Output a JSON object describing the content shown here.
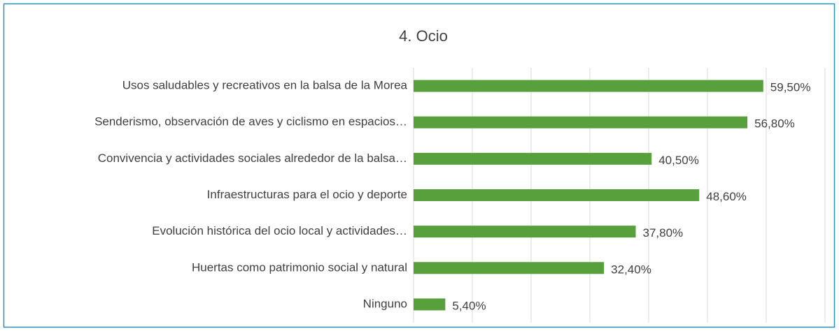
{
  "chart_data": {
    "type": "barh",
    "title": "4. Ocio",
    "categories": [
      "Usos saludables y recreativos en la balsa de la Morea",
      "Senderismo, observación de aves y ciclismo en espacios…",
      "Convivencia y actividades sociales alrededor de la balsa…",
      "Infraestructuras para el ocio y deporte",
      "Evolución histórica del ocio local y actividades…",
      "Huertas como patrimonio social y natural",
      "Ninguno"
    ],
    "values": [
      59.5,
      56.8,
      40.5,
      48.6,
      37.8,
      32.4,
      5.4
    ],
    "value_labels": [
      "59,50%",
      "56,80%",
      "40,50%",
      "48,60%",
      "37,80%",
      "32,40%",
      "5,40%"
    ],
    "color": "#57a03b",
    "xlim": [
      0,
      70
    ],
    "xticks": [
      0,
      10,
      20,
      30,
      40,
      50,
      60,
      70
    ],
    "grid": true
  }
}
